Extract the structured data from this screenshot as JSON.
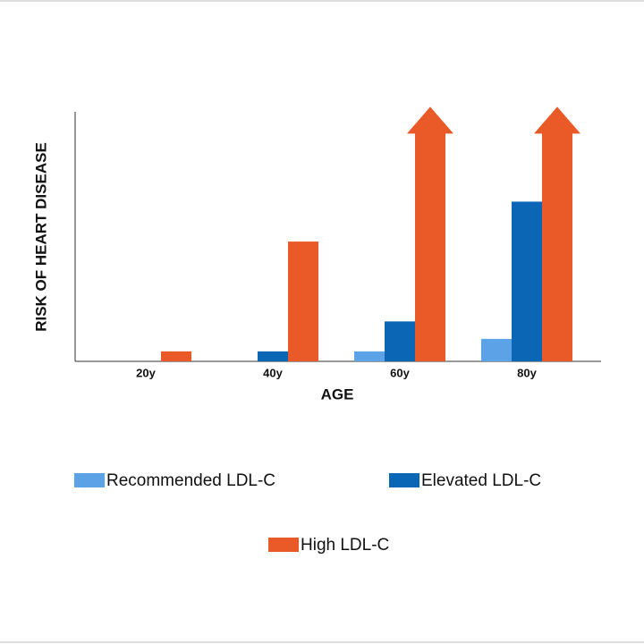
{
  "chart_data": {
    "type": "bar",
    "x_label": "AGE",
    "y_label": "RISK OF HEART DISEASE",
    "categories": [
      "20y",
      "40y",
      "60y",
      "80y"
    ],
    "series": [
      {
        "name": "Recommended LDL-C",
        "color": "#5ba3e6",
        "values": [
          0,
          0,
          4,
          9
        ]
      },
      {
        "name": "Elevated LDL-C",
        "color": "#0b66b5",
        "values": [
          0,
          4,
          16,
          64
        ]
      },
      {
        "name": "High LDL-C",
        "color": "#ea5a28",
        "values": [
          4,
          48,
          102,
          102
        ]
      }
    ],
    "ylim": [
      0,
      100
    ]
  }
}
